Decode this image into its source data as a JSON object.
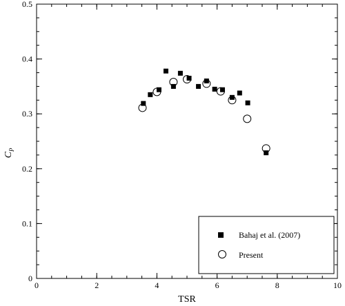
{
  "chart_data": {
    "type": "scatter",
    "title": "",
    "xlabel": "TSR",
    "ylabel": "C",
    "ylabel_sub": "P",
    "xlim": [
      0,
      10
    ],
    "ylim": [
      0,
      0.5
    ],
    "xticks": [
      0,
      2,
      4,
      6,
      8,
      10
    ],
    "yticks": [
      0,
      0.1,
      0.2,
      0.3,
      0.4,
      0.5
    ],
    "xtick_labels": [
      "0",
      "2",
      "4",
      "6",
      "8",
      "10"
    ],
    "ytick_labels": [
      "0",
      "0.1",
      "0.2",
      "0.3",
      "0.4",
      "0.5"
    ],
    "x_minor_step": 0.5,
    "y_minor_step": 0.025,
    "grid": false,
    "legend_position": "bottom-right",
    "series": [
      {
        "name": "Bahaj et al. (2007)",
        "marker": "filled-square",
        "color": "#000000",
        "points": [
          [
            3.55,
            0.319
          ],
          [
            3.78,
            0.335
          ],
          [
            4.07,
            0.344
          ],
          [
            4.3,
            0.378
          ],
          [
            4.55,
            0.35
          ],
          [
            4.78,
            0.374
          ],
          [
            5.07,
            0.365
          ],
          [
            5.38,
            0.35
          ],
          [
            5.65,
            0.36
          ],
          [
            5.92,
            0.345
          ],
          [
            6.18,
            0.344
          ],
          [
            6.5,
            0.33
          ],
          [
            6.75,
            0.338
          ],
          [
            7.02,
            0.32
          ],
          [
            7.63,
            0.229
          ]
        ]
      },
      {
        "name": "Present",
        "marker": "open-circle",
        "color": "#000000",
        "points": [
          [
            3.52,
            0.311
          ],
          [
            4.0,
            0.34
          ],
          [
            4.55,
            0.358
          ],
          [
            5.0,
            0.363
          ],
          [
            5.65,
            0.355
          ],
          [
            6.12,
            0.341
          ],
          [
            6.5,
            0.325
          ],
          [
            7.0,
            0.291
          ],
          [
            7.63,
            0.237
          ]
        ]
      }
    ]
  }
}
